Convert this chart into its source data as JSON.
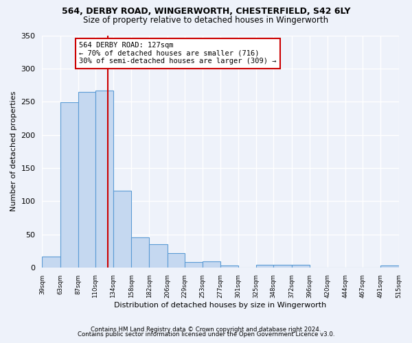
{
  "title1": "564, DERBY ROAD, WINGERWORTH, CHESTERFIELD, S42 6LY",
  "title2": "Size of property relative to detached houses in Wingerworth",
  "xlabel": "Distribution of detached houses by size in Wingerworth",
  "ylabel": "Number of detached properties",
  "footnote1": "Contains HM Land Registry data © Crown copyright and database right 2024.",
  "footnote2": "Contains public sector information licensed under the Open Government Licence v3.0.",
  "property_size": 127,
  "property_label": "564 DERBY ROAD: 127sqm",
  "annotation_line1": "← 70% of detached houses are smaller (716)",
  "annotation_line2": "30% of semi-detached houses are larger (309) →",
  "bar_color": "#c5d8f0",
  "bar_edge_color": "#5b9bd5",
  "vline_color": "#cc0000",
  "annotation_box_color": "#cc0000",
  "background_color": "#eef2fa",
  "grid_color": "#ffffff",
  "bin_edges": [
    39,
    63,
    87,
    110,
    134,
    158,
    182,
    206,
    229,
    253,
    277,
    301,
    325,
    348,
    372,
    396,
    420,
    444,
    467,
    491,
    515
  ],
  "bin_labels": [
    "39sqm",
    "63sqm",
    "87sqm",
    "110sqm",
    "134sqm",
    "158sqm",
    "182sqm",
    "206sqm",
    "229sqm",
    "253sqm",
    "277sqm",
    "301sqm",
    "325sqm",
    "348sqm",
    "372sqm",
    "396sqm",
    "420sqm",
    "444sqm",
    "467sqm",
    "491sqm",
    "515sqm"
  ],
  "bar_heights": [
    16,
    249,
    265,
    267,
    116,
    45,
    35,
    22,
    8,
    9,
    3,
    0,
    4,
    4,
    4,
    0,
    0,
    0,
    0,
    3
  ],
  "ylim": [
    0,
    350
  ],
  "yticks": [
    0,
    50,
    100,
    150,
    200,
    250,
    300,
    350
  ]
}
